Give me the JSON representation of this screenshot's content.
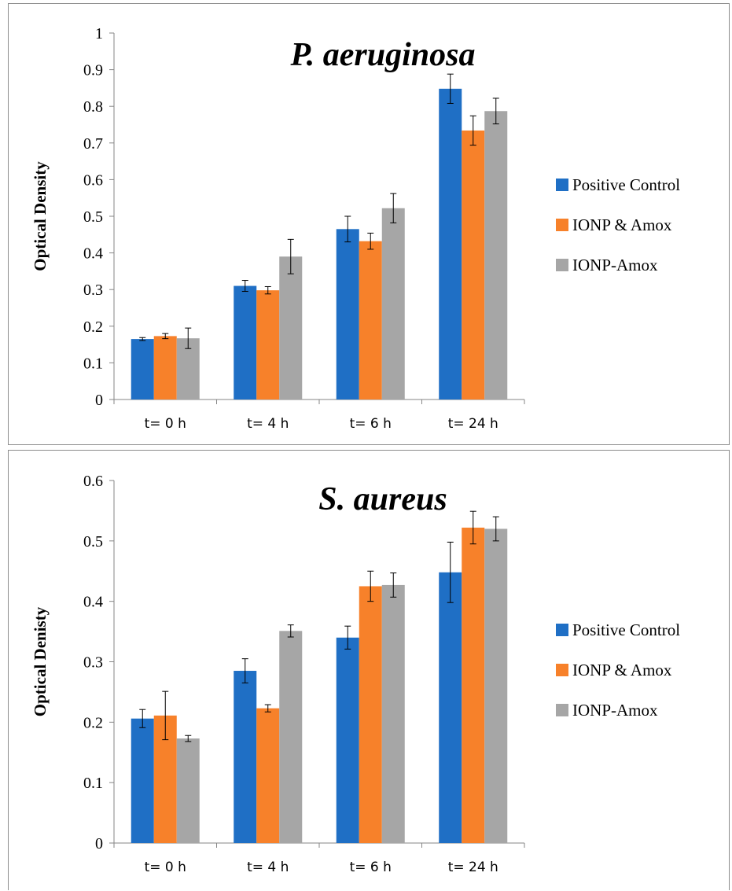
{
  "chart_data": [
    {
      "type": "bar",
      "title": "P. aeruginosa",
      "xlabel": "",
      "ylabel": "Optical Density",
      "categories": [
        "t= 0 h",
        "t= 4 h",
        "t= 6 h",
        "t= 24 h"
      ],
      "series": [
        {
          "name": "Positive Control",
          "values": [
            0.165,
            0.31,
            0.465,
            0.848
          ],
          "errors": [
            0.004,
            0.015,
            0.035,
            0.04
          ]
        },
        {
          "name": "IONP & Amox",
          "values": [
            0.173,
            0.298,
            0.432,
            0.734
          ],
          "errors": [
            0.007,
            0.01,
            0.022,
            0.04
          ]
        },
        {
          "name": "IONP-Amox",
          "values": [
            0.167,
            0.39,
            0.522,
            0.787
          ],
          "errors": [
            0.028,
            0.047,
            0.04,
            0.035
          ]
        }
      ],
      "ylim": [
        0,
        1
      ],
      "yticks": [
        "0",
        "0.1",
        "0.2",
        "0.3",
        "0.4",
        "0.5",
        "0.6",
        "0.7",
        "0.8",
        "0.9",
        "1"
      ],
      "legend_position": "right",
      "grid": false
    },
    {
      "type": "bar",
      "title": "S. aureus",
      "xlabel": "",
      "ylabel": "Optical Denisty",
      "categories": [
        "t= 0 h",
        "t= 4 h",
        "t= 6 h",
        "t= 24 h"
      ],
      "series": [
        {
          "name": "Positive Control",
          "values": [
            0.206,
            0.285,
            0.34,
            0.448
          ],
          "errors": [
            0.015,
            0.02,
            0.019,
            0.05
          ]
        },
        {
          "name": "IONP & Amox",
          "values": [
            0.211,
            0.223,
            0.425,
            0.522
          ],
          "errors": [
            0.04,
            0.006,
            0.025,
            0.027
          ]
        },
        {
          "name": "IONP-Amox",
          "values": [
            0.173,
            0.351,
            0.427,
            0.52
          ],
          "errors": [
            0.005,
            0.01,
            0.02,
            0.02
          ]
        }
      ],
      "ylim": [
        0,
        0.6
      ],
      "yticks": [
        "0",
        "0.1",
        "0.2",
        "0.3",
        "0.4",
        "0.5",
        "0.6"
      ],
      "legend_position": "right",
      "grid": false
    }
  ],
  "colors": {
    "positive_control": "#1f6fc5",
    "ionp_and_amox": "#f7812a",
    "ionp_amox": "#a6a6a6"
  }
}
